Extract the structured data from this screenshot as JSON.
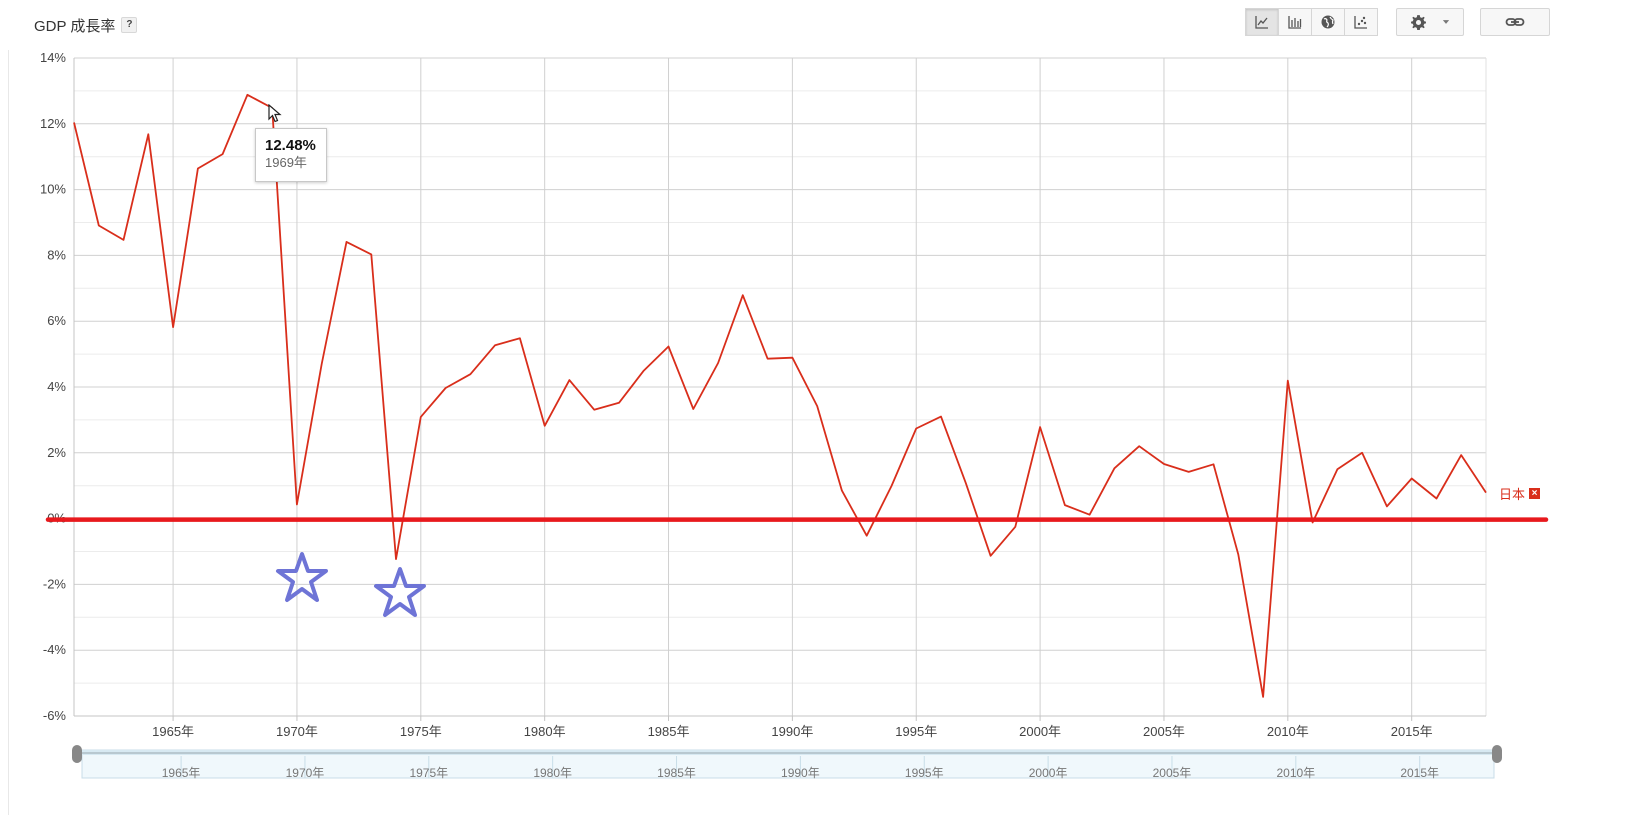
{
  "header": {
    "title": "GDP 成長率",
    "help": "?"
  },
  "toolbar": {
    "icons": [
      "line-chart-icon",
      "bar-chart-icon",
      "globe-map-icon",
      "scatter-chart-icon"
    ],
    "settings_icon": "gear-icon",
    "link_icon": "link-icon"
  },
  "tooltip": {
    "value": "12.48%",
    "year": "1969年"
  },
  "series_label": {
    "name": "日本",
    "close": "×"
  },
  "colors": {
    "series": "#d92e1b",
    "baseline": "#e8191d",
    "star": "#6e74d6"
  },
  "chart_data": {
    "type": "line",
    "x": [
      1961,
      1962,
      1963,
      1964,
      1965,
      1966,
      1967,
      1968,
      1969,
      1970,
      1971,
      1972,
      1973,
      1974,
      1975,
      1976,
      1977,
      1978,
      1979,
      1980,
      1981,
      1982,
      1983,
      1984,
      1985,
      1986,
      1987,
      1988,
      1989,
      1990,
      1991,
      1992,
      1993,
      1994,
      1995,
      1996,
      1997,
      1998,
      1999,
      2000,
      2001,
      2002,
      2003,
      2004,
      2005,
      2006,
      2007,
      2008,
      2009,
      2010,
      2011,
      2012,
      2013,
      2014,
      2015,
      2016,
      2017,
      2018
    ],
    "series": [
      {
        "name": "日本",
        "values": [
          12.04,
          8.91,
          8.47,
          11.68,
          5.82,
          10.64,
          11.08,
          12.88,
          12.48,
          0.43,
          4.7,
          8.41,
          8.03,
          -1.23,
          3.09,
          3.97,
          4.39,
          5.27,
          5.48,
          2.82,
          4.21,
          3.31,
          3.52,
          4.5,
          5.23,
          3.33,
          4.73,
          6.79,
          4.86,
          4.89,
          3.42,
          0.85,
          -0.52,
          0.99,
          2.74,
          3.1,
          1.08,
          -1.13,
          -0.25,
          2.78,
          0.41,
          0.12,
          1.53,
          2.2,
          1.66,
          1.42,
          1.65,
          -1.09,
          -5.42,
          4.19,
          -0.12,
          1.5,
          2.0,
          0.37,
          1.22,
          0.61,
          1.93,
          0.79
        ]
      }
    ],
    "ylim": [
      -6,
      14
    ],
    "yticks": [
      "-6%",
      "-4%",
      "-2%",
      "0%",
      "2%",
      "4%",
      "6%",
      "8%",
      "10%",
      "12%",
      "14%"
    ],
    "xticks": [
      "1965年",
      "1970年",
      "1975年",
      "1980年",
      "1985年",
      "1990年",
      "1995年",
      "2000年",
      "2005年",
      "2010年",
      "2015年"
    ],
    "xtick_years": [
      1965,
      1970,
      1975,
      1980,
      1985,
      1990,
      1995,
      2000,
      2005,
      2010,
      2015
    ],
    "grid": true,
    "highlight": {
      "year": 1969
    },
    "baseline": 0,
    "star_years": [
      1970,
      1974
    ]
  }
}
